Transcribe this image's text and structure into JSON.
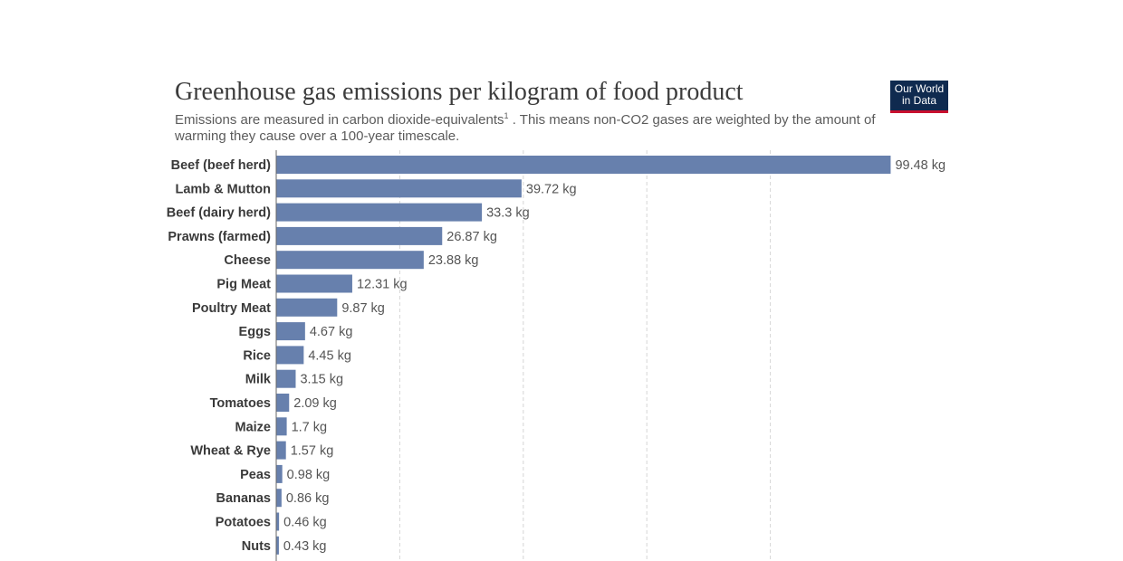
{
  "title": "Greenhouse gas emissions per kilogram of food product",
  "subtitle": {
    "part1": "Emissions are measured in carbon dioxide-equivalents",
    "footnote_mark": "1",
    "part2": " . This means non-CO2 gases are weighted by the amount of warming they cause over a 100-year timescale."
  },
  "logo": {
    "line1": "Our World",
    "line2": "in Data"
  },
  "colors": {
    "bar": "#6780ad",
    "grid": "#d6d6d6",
    "axis": "#666666",
    "logo_bg": "#0f2a4f",
    "logo_accent": "#c8102e"
  },
  "chart_data": {
    "type": "bar",
    "orientation": "horizontal",
    "title": "Greenhouse gas emissions per kilogram of food product",
    "unit": "kg",
    "categories": [
      "Beef (beef herd)",
      "Lamb & Mutton",
      "Beef (dairy herd)",
      "Prawns (farmed)",
      "Cheese",
      "Pig Meat",
      "Poultry Meat",
      "Eggs",
      "Rice",
      "Milk",
      "Tomatoes",
      "Maize",
      "Wheat & Rye",
      "Peas",
      "Bananas",
      "Potatoes",
      "Nuts"
    ],
    "values": [
      99.48,
      39.72,
      33.3,
      26.87,
      23.88,
      12.31,
      9.87,
      4.67,
      4.45,
      3.15,
      2.09,
      1.7,
      1.57,
      0.98,
      0.86,
      0.46,
      0.43
    ],
    "value_labels": [
      "99.48 kg",
      "39.72 kg",
      "33.3 kg",
      "26.87 kg",
      "23.88 kg",
      "12.31 kg",
      "9.87 kg",
      "4.67 kg",
      "4.45 kg",
      "3.15 kg",
      "2.09 kg",
      "1.7 kg",
      "1.57 kg",
      "0.98 kg",
      "0.86 kg",
      "0.46 kg",
      "0.43 kg"
    ],
    "xlim": [
      0,
      100
    ],
    "gridlines": [
      20,
      40,
      60,
      80
    ],
    "grid": true
  }
}
